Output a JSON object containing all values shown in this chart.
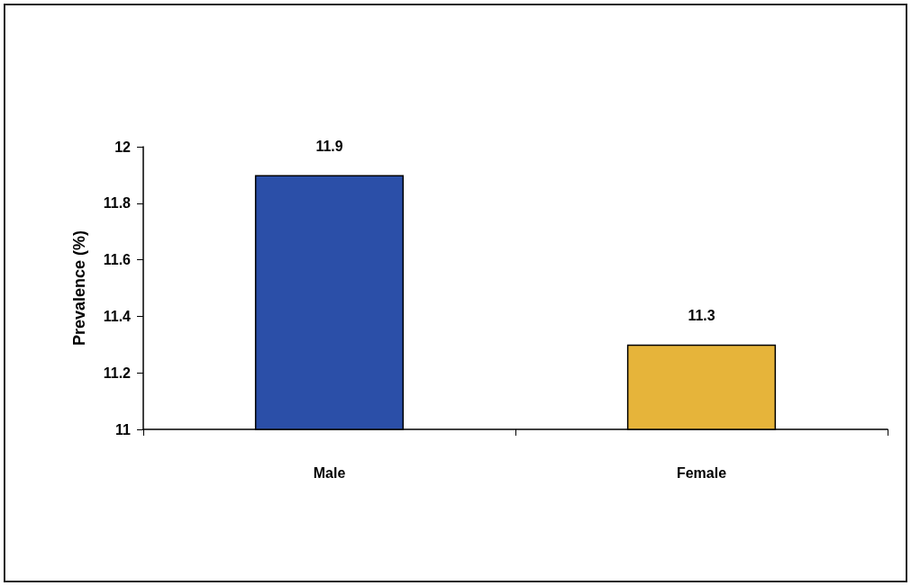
{
  "chart_data": {
    "type": "bar",
    "ylabel": "Prevalence (%)",
    "categories": [
      "Male",
      "Female"
    ],
    "values": [
      11.9,
      11.3
    ],
    "colors": [
      "#2b4fa8",
      "#e6b43a"
    ],
    "ylim": [
      11,
      12
    ],
    "yticks": [
      11,
      11.2,
      11.4,
      11.6,
      11.8,
      12
    ],
    "grid": false,
    "data_labels": true
  }
}
